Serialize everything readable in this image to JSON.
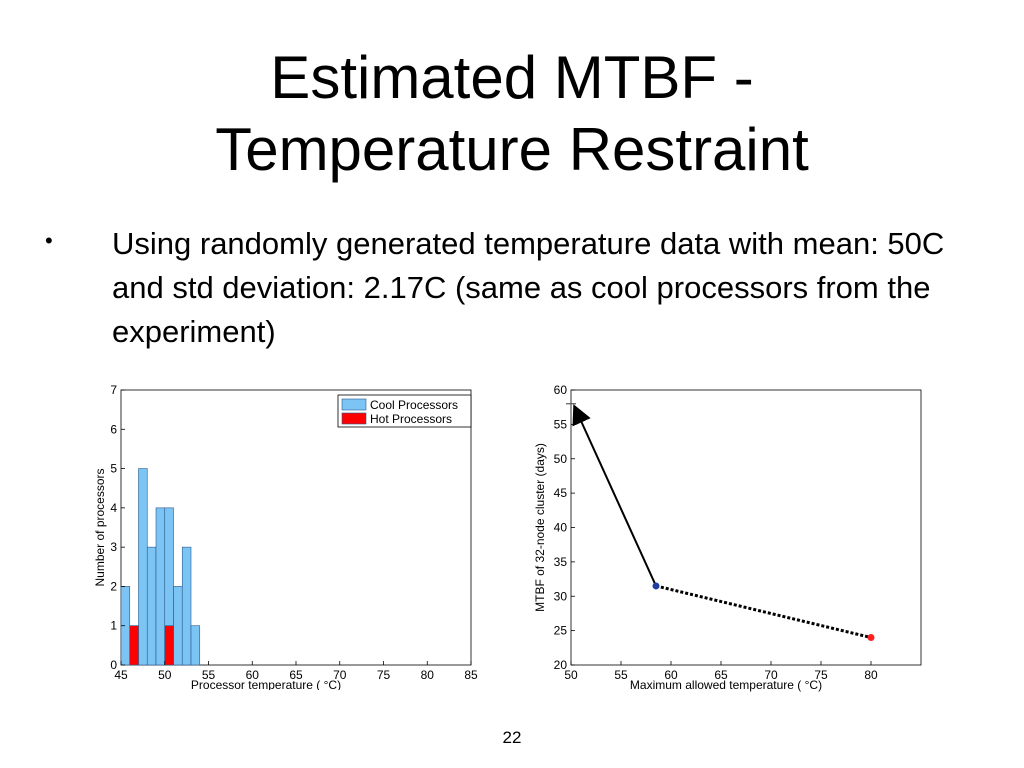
{
  "slide": {
    "title_line1": "Estimated MTBF -",
    "title_line2": "Temperature Restraint",
    "bullet": "Using randomly generated temperature data with mean: 50C and std deviation: 2.17C (same as cool processors from the experiment)",
    "page_number": "22"
  },
  "chart_data": [
    {
      "type": "bar",
      "xlabel": "Processor temperature ( °C)",
      "ylabel": "Number of processors",
      "xlim": [
        45,
        85
      ],
      "ylim": [
        0,
        7
      ],
      "xticks": [
        45,
        50,
        55,
        60,
        65,
        70,
        75,
        80,
        85
      ],
      "yticks": [
        0,
        1,
        2,
        3,
        4,
        5,
        6,
        7
      ],
      "legend_position": "top-right",
      "colors": {
        "cool": "#7cc4f4",
        "hot": "#ff0000"
      },
      "series": [
        {
          "name": "Cool Processors",
          "bin_width": 1,
          "x": [
            45.5,
            46.5,
            47.5,
            48.5,
            49.5,
            50.5,
            51.5,
            52.5,
            53.5
          ],
          "values": [
            2,
            1,
            5,
            3,
            4,
            4,
            2,
            3,
            1
          ]
        },
        {
          "name": "Hot Processors",
          "bin_width": 1,
          "x": [
            46.5,
            50.5
          ],
          "values": [
            1,
            1
          ]
        }
      ]
    },
    {
      "type": "line",
      "xlabel": "Maximum allowed temperature ( °C)",
      "ylabel": "MTBF of 32-node cluster (days)",
      "xlim": [
        50,
        80
      ],
      "ylim": [
        20,
        60
      ],
      "xticks": [
        50,
        55,
        60,
        65,
        70,
        75,
        80
      ],
      "yticks": [
        20,
        25,
        30,
        35,
        40,
        45,
        50,
        55,
        60
      ],
      "colors": {
        "line": "#000000",
        "mid_point": "#1f3f9f",
        "end_point": "#ff2020",
        "start_point": "#555555"
      },
      "points": [
        {
          "x": 50,
          "y": 58
        },
        {
          "x": 58.5,
          "y": 31.5
        },
        {
          "x": 80,
          "y": 24
        }
      ]
    }
  ]
}
